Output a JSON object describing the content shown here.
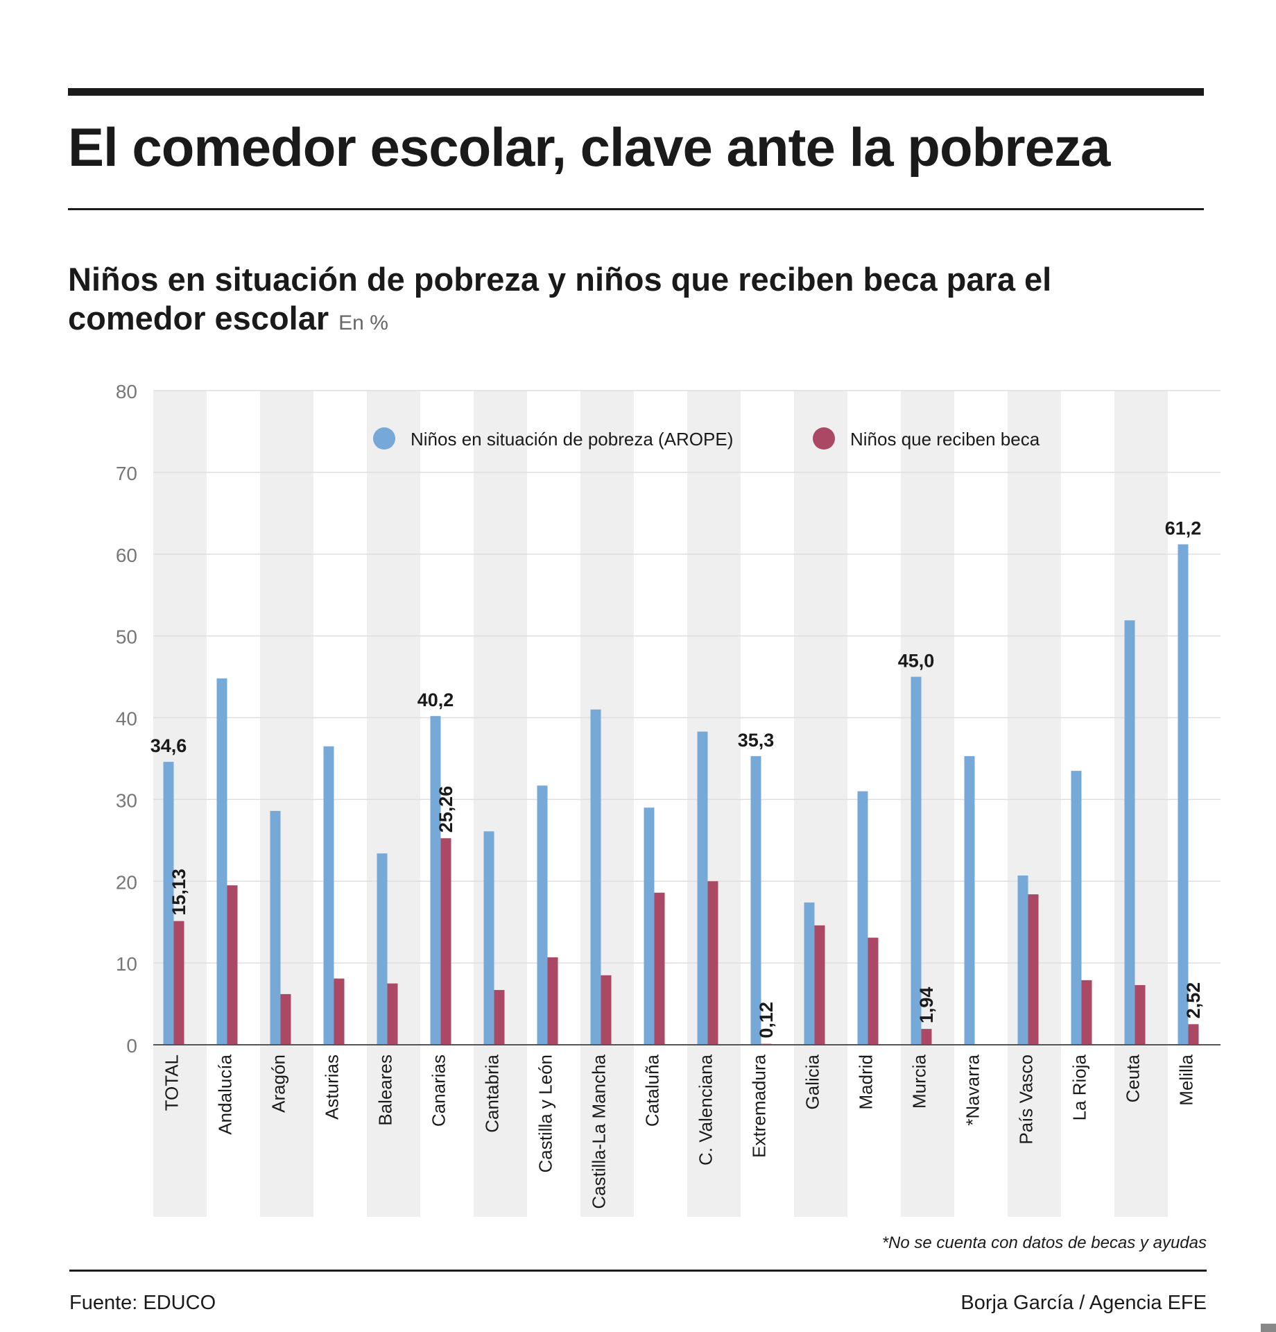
{
  "header": {
    "title": "El comedor escolar, clave ante la pobreza",
    "subtitle": "Niños en situación de pobreza y niños que reciben beca para el comedor escolar",
    "unit": "En %"
  },
  "chart_data": {
    "type": "bar",
    "ylim": [
      0,
      80
    ],
    "yticks": [
      "0",
      "10",
      "20",
      "30",
      "40",
      "50",
      "60",
      "70",
      "80"
    ],
    "grid": true,
    "legend": "top-center",
    "categories": [
      "TOTAL",
      "Andalucía",
      "Aragón",
      "Asturias",
      "Baleares",
      "Canarias",
      "Cantabria",
      "Castilla y León",
      "Castilla-La Mancha",
      "Cataluña",
      "C. Valenciana",
      "Extremadura",
      "Galicia",
      "Madrid",
      "Murcia",
      "*Navarra",
      "País Vasco",
      "La Rioja",
      "Ceuta",
      "Melilla"
    ],
    "series": [
      {
        "name": "Niños en situación de pobreza (AROPE)",
        "color": "#76a8d8",
        "values": [
          34.6,
          44.8,
          28.6,
          36.5,
          23.4,
          40.2,
          26.1,
          31.7,
          41.0,
          29.0,
          38.3,
          35.3,
          17.4,
          31.0,
          45.0,
          35.3,
          20.7,
          33.5,
          51.9,
          61.2
        ],
        "labels": [
          "34,6",
          "",
          "",
          "",
          "",
          "40,2",
          "",
          "",
          "",
          "",
          "",
          "35,3",
          "",
          "",
          "45,0",
          "",
          "",
          "",
          "",
          "61,2"
        ]
      },
      {
        "name": "Niños que reciben beca",
        "color": "#ab4965",
        "values": [
          15.13,
          19.5,
          6.2,
          8.1,
          7.5,
          25.26,
          6.7,
          10.7,
          8.5,
          18.6,
          20.0,
          0.12,
          14.6,
          13.1,
          1.94,
          0,
          18.4,
          7.9,
          7.3,
          2.52
        ],
        "labels": [
          "15,13",
          "",
          "",
          "",
          "",
          "25,26",
          "",
          "",
          "",
          "",
          "",
          "0,12",
          "",
          "",
          "1,94",
          "",
          "",
          "",
          "",
          "2,52"
        ]
      }
    ]
  },
  "footnote": "*No se cuenta con datos de becas y ayudas",
  "footer": {
    "source": "Fuente: EDUCO",
    "credit": "Borja García / Agencia EFE"
  }
}
